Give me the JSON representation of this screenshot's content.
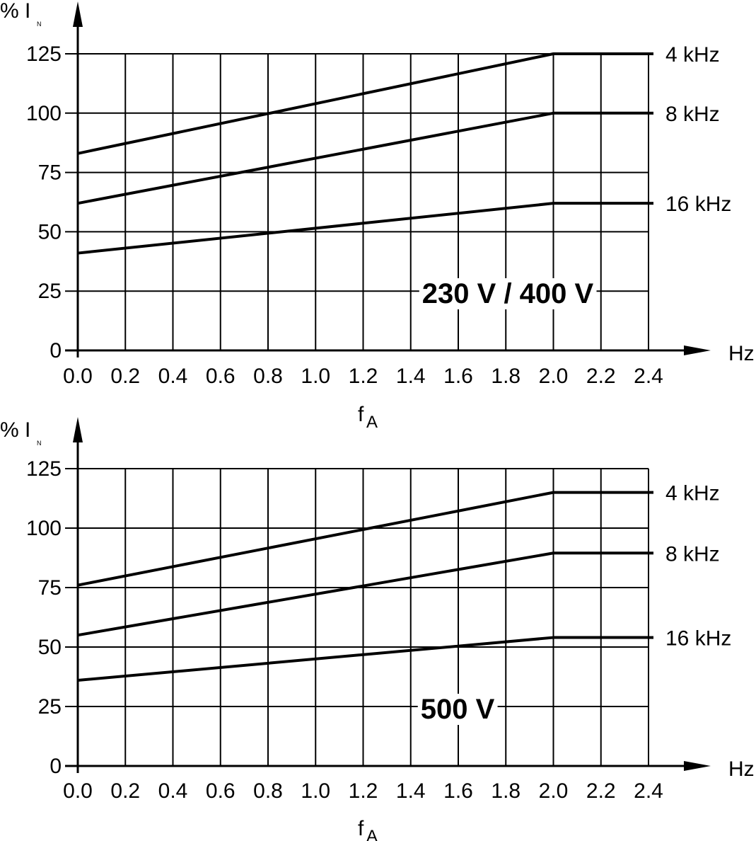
{
  "chart_data": [
    {
      "type": "line",
      "ylabel": "% I",
      "ylabel_subscript": "N",
      "xlabel": "f",
      "xlabel_subscript": "A",
      "x_unit": "Hz",
      "annotation": "230 V / 400 V",
      "xlim": [
        0,
        2.4
      ],
      "ylim": [
        0,
        125
      ],
      "x_ticks": [
        "0.0",
        "0.2",
        "0.4",
        "0.6",
        "0.8",
        "1.0",
        "1.2",
        "1.4",
        "1.6",
        "1.8",
        "2.0",
        "2.2",
        "2.4"
      ],
      "y_ticks": [
        "0",
        "25",
        "50",
        "75",
        "100",
        "125"
      ],
      "grid": true,
      "series": [
        {
          "name": "4 kHz",
          "x": [
            0,
            2.0,
            2.4
          ],
          "y": [
            83,
            125,
            125
          ]
        },
        {
          "name": "8 kHz",
          "x": [
            0,
            2.0,
            2.4
          ],
          "y": [
            62,
            100,
            100
          ]
        },
        {
          "name": "16 kHz",
          "x": [
            0,
            2.0,
            2.4
          ],
          "y": [
            41,
            62,
            62
          ]
        }
      ]
    },
    {
      "type": "line",
      "ylabel": "% I",
      "ylabel_subscript": "N",
      "xlabel": "f",
      "xlabel_subscript": "A",
      "x_unit": "Hz",
      "annotation": "500 V",
      "xlim": [
        0,
        2.4
      ],
      "ylim": [
        0,
        125
      ],
      "x_ticks": [
        "0.0",
        "0.2",
        "0.4",
        "0.6",
        "0.8",
        "1.0",
        "1.2",
        "1.4",
        "1.6",
        "1.8",
        "2.0",
        "2.2",
        "2.4"
      ],
      "y_ticks": [
        "0",
        "25",
        "50",
        "75",
        "100",
        "125"
      ],
      "grid": true,
      "series": [
        {
          "name": "4 kHz",
          "x": [
            0,
            2.0,
            2.4
          ],
          "y": [
            76,
            115,
            115
          ]
        },
        {
          "name": "8 kHz",
          "x": [
            0,
            2.0,
            2.4
          ],
          "y": [
            55,
            89.5,
            89.5
          ]
        },
        {
          "name": "16 kHz",
          "x": [
            0,
            2.0,
            2.4
          ],
          "y": [
            36,
            54,
            54
          ]
        }
      ]
    }
  ]
}
